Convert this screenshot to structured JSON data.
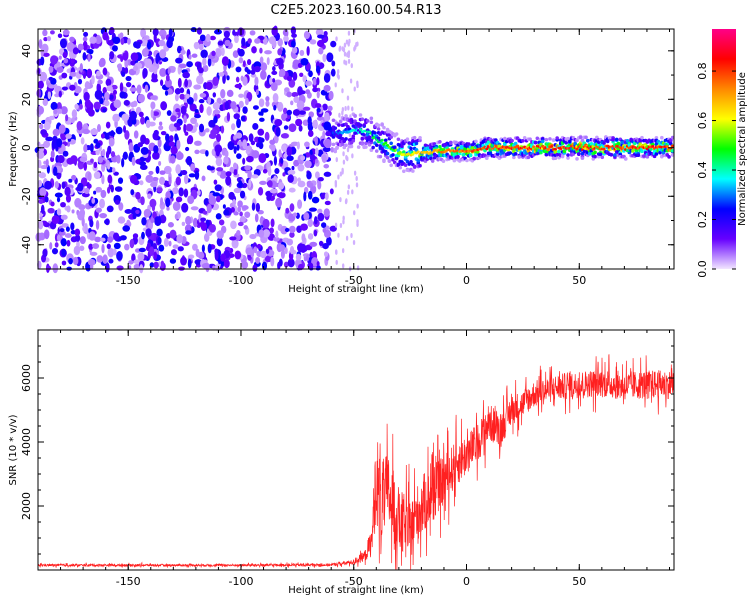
{
  "title": "C2E5.2023.160.00.54.R13",
  "chart_data": [
    {
      "type": "heatmap",
      "xlabel": "Height of straight line (km)",
      "ylabel": "Frequency (Hz)",
      "xlim": [
        -190,
        92
      ],
      "ylim": [
        -50,
        49
      ],
      "xticks": [
        -150,
        -100,
        -50,
        0,
        50
      ],
      "yticks": [
        -40,
        -20,
        0,
        20,
        40
      ],
      "colorbar": {
        "label": "Normalized spectral amplitude",
        "range": [
          0,
          0.97
        ],
        "ticks": [
          "0.0",
          "0.2",
          "0.4",
          "0.6",
          "0.8"
        ],
        "colors": [
          "#f2e6ff",
          "#6600ff",
          "#0000ff",
          "#00ffff",
          "#00ff00",
          "#ffff00",
          "#ff8800",
          "#ff0000",
          "#ff0088"
        ]
      },
      "noise_region_x": [
        -190,
        -59
      ],
      "ridge": {
        "x": [
          -59,
          -55,
          -50,
          -45,
          -40,
          -35,
          -30,
          -25,
          -20,
          -10,
          0,
          10,
          20,
          40,
          60,
          80,
          92
        ],
        "freq": [
          6,
          6,
          7,
          7,
          4,
          1,
          -2,
          -3,
          -2,
          -1,
          -1,
          0,
          0,
          0,
          0,
          0,
          0
        ],
        "peak_amplitude": [
          0.3,
          0.35,
          0.4,
          0.45,
          0.5,
          0.55,
          0.6,
          0.7,
          0.75,
          0.8,
          0.85,
          0.9,
          0.9,
          0.9,
          0.9,
          0.9,
          0.9
        ]
      }
    },
    {
      "type": "line",
      "xlabel": "Height of straight line (km)",
      "ylabel": "SNR (10 * v/v)",
      "xlim": [
        -190,
        92
      ],
      "ylim": [
        0,
        7500
      ],
      "xticks": [
        -150,
        -100,
        -50,
        0,
        50
      ],
      "yticks": [
        2000,
        4000,
        6000
      ],
      "color": "#ff2020",
      "series": [
        {
          "x": [
            -190,
            -150,
            -100,
            -60,
            -50,
            -45,
            -42,
            -40,
            -38,
            -35,
            -30,
            -25,
            -20,
            -15,
            -10,
            -5,
            0,
            5,
            10,
            15,
            20,
            25,
            30,
            40,
            50,
            60,
            70,
            80,
            92
          ],
          "y": [
            150,
            150,
            150,
            160,
            250,
            450,
            900,
            3000,
            2000,
            2500,
            1500,
            1200,
            2000,
            2400,
            2800,
            3300,
            3600,
            4000,
            4600,
            4400,
            5000,
            5200,
            5500,
            5700,
            5800,
            5850,
            5750,
            5800,
            5800
          ],
          "spread": [
            60,
            60,
            60,
            70,
            120,
            300,
            800,
            2500,
            2200,
            2000,
            1800,
            1600,
            1600,
            1400,
            1300,
            1200,
            1100,
            1000,
            1000,
            900,
            800,
            700,
            700,
            700,
            700,
            750,
            750,
            750,
            750
          ]
        }
      ]
    }
  ]
}
